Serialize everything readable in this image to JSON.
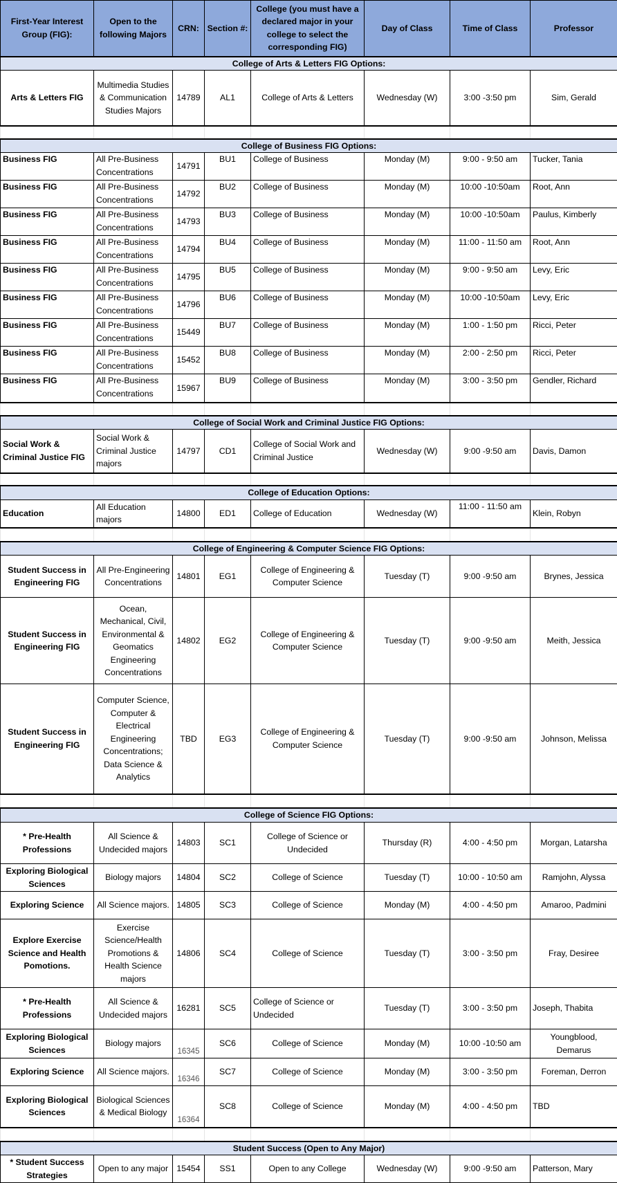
{
  "colors": {
    "header_bg": "#8EA9DB",
    "section_bg": "#D9E1F2"
  },
  "headers": [
    "First-Year Interest Group (FIG):",
    "Open to the following Majors",
    "CRN:",
    "Section #:",
    "College (you must have a declared major in your college to select the corresponding FIG)",
    "Day of Class",
    "Time of Class",
    "Professor"
  ],
  "sections": [
    {
      "title": "College of Arts & Letters FIG Options:",
      "rows": [
        [
          "Arts & Letters FIG",
          "Multimedia Studies & Communication Studies Majors",
          "14789",
          "AL1",
          "College of Arts & Letters",
          "Wednesday (W)",
          "3:00 -3:50 pm",
          "Sim, Gerald"
        ]
      ]
    },
    {
      "title": "College of Business FIG Options:",
      "rows": [
        [
          "Business FIG",
          "All Pre-Business Concentrations",
          "14791",
          "BU1",
          "College of Business",
          "Monday (M)",
          "9:00 - 9:50 am",
          "Tucker, Tania"
        ],
        [
          "Business FIG",
          "All Pre-Business Concentrations",
          "14792",
          "BU2",
          "College of Business",
          "Monday (M)",
          "10:00 -10:50am",
          "Root, Ann"
        ],
        [
          "Business FIG",
          "All Pre-Business Concentrations",
          "14793",
          "BU3",
          "College of Business",
          "Monday (M)",
          "10:00 -10:50am",
          "Paulus, Kimberly"
        ],
        [
          "Business FIG",
          "All Pre-Business Concentrations",
          "14794",
          "BU4",
          "College of Business",
          "Monday (M)",
          "11:00 - 11:50 am",
          "Root, Ann"
        ],
        [
          "Business FIG",
          "All Pre-Business Concentrations",
          "14795",
          "BU5",
          "College of Business",
          "Monday (M)",
          "9:00 - 9:50 am",
          "Levy, Eric"
        ],
        [
          "Business FIG",
          "All Pre-Business Concentrations",
          "14796",
          "BU6",
          "College of Business",
          "Monday (M)",
          "10:00 -10:50am",
          "Levy, Eric"
        ],
        [
          "Business FIG",
          "All Pre-Business Concentrations",
          "15449",
          "BU7",
          "College of Business",
          "Monday (M)",
          "1:00 - 1:50 pm",
          "Ricci, Peter"
        ],
        [
          "Business FIG",
          "All Pre-Business Concentrations",
          "15452",
          "BU8",
          "College of Business",
          "Monday (M)",
          "2:00 - 2:50 pm",
          "Ricci, Peter"
        ],
        [
          "Business FIG",
          "All Pre-Business Concentrations",
          "15967",
          "BU9",
          "College of Business",
          "Monday (M)",
          "3:00 - 3:50 pm",
          "Gendler, Richard"
        ]
      ]
    },
    {
      "title": "College of Social Work and Criminal Justice FIG Options:",
      "rows": [
        [
          "Social Work & Criminal Justice FIG",
          "Social Work & Criminal Justice majors",
          "14797",
          "CD1",
          "College of Social Work and Criminal Justice",
          "Wednesday (W)",
          "9:00 -9:50 am",
          "Davis, Damon"
        ]
      ]
    },
    {
      "title": "College of Education Options:",
      "rows": [
        [
          "Education",
          "All Education majors",
          "14800",
          "ED1",
          "College of Education",
          "Wednesday (W)",
          "11:00 - 11:50 am",
          "Klein, Robyn"
        ]
      ]
    },
    {
      "title": "College of Engineering & Computer Science FIG Options:",
      "rows": [
        [
          "Student Success in Engineering FIG",
          "All Pre-Engineering Concentrations",
          "14801",
          "EG1",
          "College of Engineering & Computer Science",
          "Tuesday (T)",
          "9:00 -9:50 am",
          "Brynes, Jessica"
        ],
        [
          "Student Success in Engineering FIG",
          "Ocean, Mechanical, Civil, Environmental & Geomatics Engineering Concentrations",
          "14802",
          "EG2",
          "College of Engineering & Computer Science",
          "Tuesday (T)",
          "9:00 -9:50 am",
          "Meith, Jessica"
        ],
        [
          "Student Success in Engineering FIG",
          "Computer Science, Computer & Electrical Engineering Concentrations; Data Science & Analytics",
          "TBD",
          "EG3",
          "College of Engineering & Computer Science",
          "Tuesday (T)",
          "9:00 -9:50 am",
          "Johnson, Melissa"
        ]
      ]
    },
    {
      "title": "College of Science FIG Options:",
      "rows": [
        [
          "* Pre-Health Professions",
          "All Science & Undecided majors",
          "14803",
          "SC1",
          "College of Science or Undecided",
          "Thursday (R)",
          "4:00 - 4:50 pm",
          "Morgan, Latarsha"
        ],
        [
          "Exploring Biological Sciences",
          "Biology majors",
          "14804",
          "SC2",
          "College of Science",
          "Tuesday (T)",
          "10:00 - 10:50 am",
          "Ramjohn, Alyssa"
        ],
        [
          "Exploring Science",
          "All Science majors.",
          "14805",
          "SC3",
          "College of Science",
          "Monday (M)",
          "4:00 - 4:50 pm",
          "Amaroo, Padmini"
        ],
        [
          "Explore Exercise Science and Health Pomotions.",
          "Exercise Science/Health Promotions & Health Science majors",
          "14806",
          "SC4",
          "College of Science",
          "Tuesday (T)",
          "3:00 - 3:50 pm",
          "Fray, Desiree"
        ],
        [
          "* Pre-Health Professions",
          "All Science & Undecided majors",
          "16281",
          "SC5",
          "College of Science or Undecided",
          "Tuesday (T)",
          "3:00 - 3:50 pm",
          "Joseph, Thabita"
        ],
        [
          "Exploring Biological Sciences",
          "Biology majors",
          "16345",
          "SC6",
          "College of Science",
          "Monday (M)",
          "10:00 -10:50 am",
          "Youngblood, Demarus"
        ],
        [
          "Exploring Science",
          "All Science majors.",
          "16346",
          "SC7",
          "College of Science",
          "Monday (M)",
          "3:00 - 3:50 pm",
          "Foreman, Derron"
        ],
        [
          "Exploring Biological Sciences",
          "Biological Sciences & Medical Biology",
          "16364",
          "SC8",
          "College of Science",
          "Monday (M)",
          "4:00 - 4:50 pm",
          "TBD"
        ]
      ]
    },
    {
      "title": "Student Success (Open to Any Major)",
      "rows": [
        [
          "* Student Success Strategies",
          "Open to any major",
          "15454",
          "SS1",
          "Open to any College",
          "Wednesday (W)",
          "9:00 -9:50 am",
          "Patterson, Mary"
        ]
      ]
    }
  ]
}
